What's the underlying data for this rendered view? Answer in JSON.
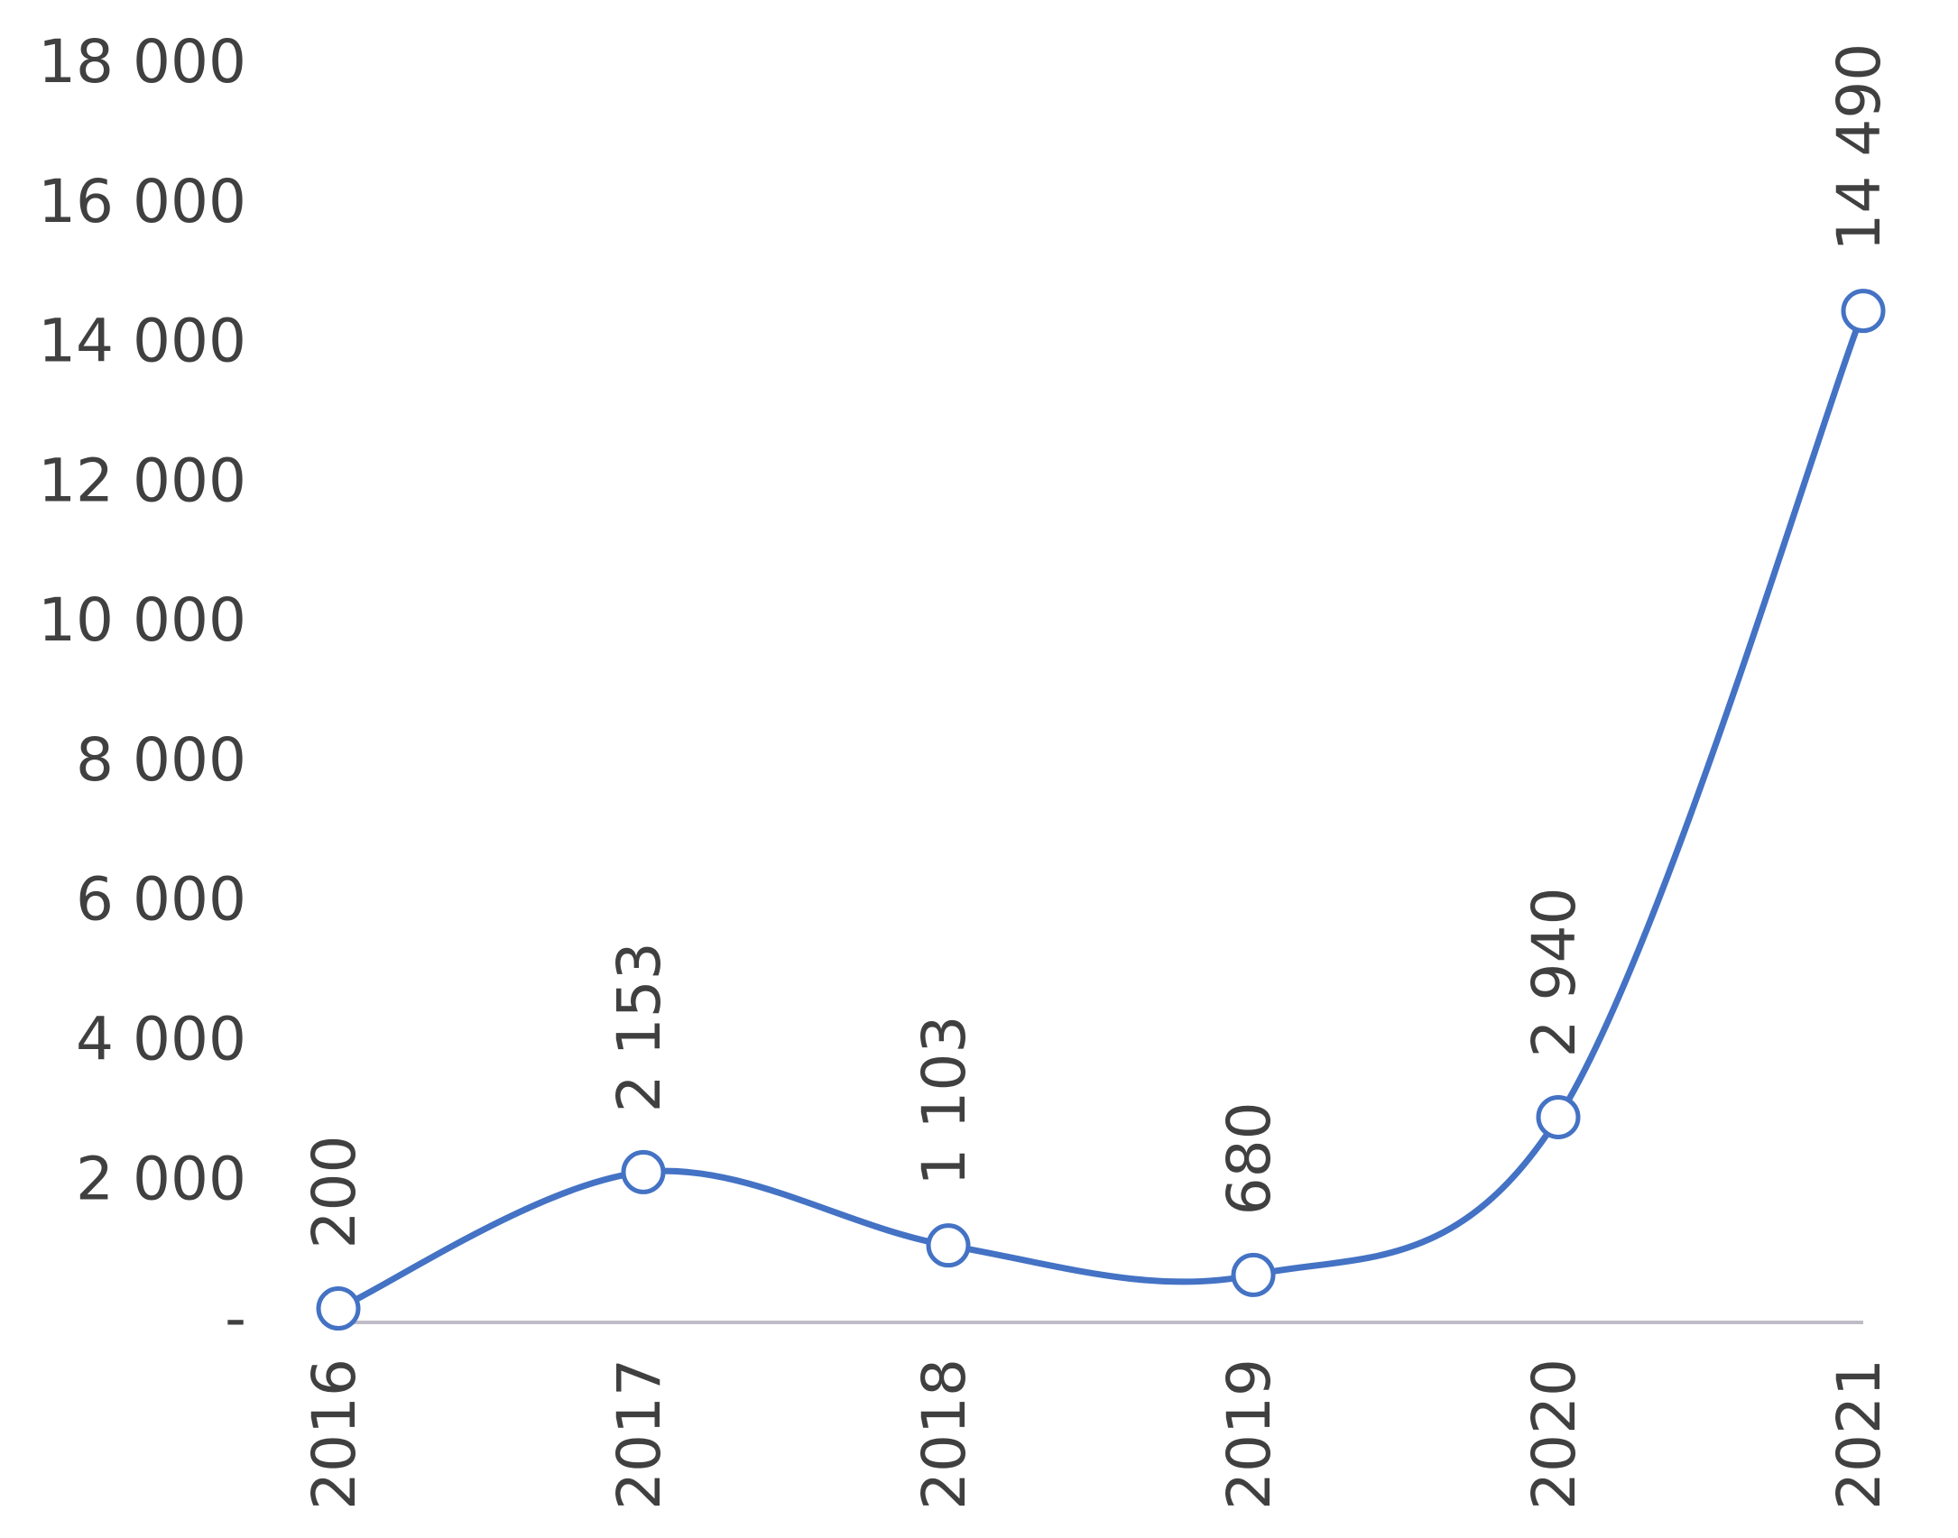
{
  "chart_data": {
    "type": "line",
    "categories": [
      "2016",
      "2017",
      "2018",
      "2019",
      "2020",
      "2021"
    ],
    "values": [
      200,
      2153,
      1103,
      680,
      2940,
      14490
    ],
    "value_labels": [
      "200",
      "2 153",
      "1 103",
      "680",
      "2 940",
      "14 490"
    ],
    "color": "#4472c4",
    "ylim": [
      0,
      18000
    ],
    "yticks": [
      {
        "value": 0,
        "label": "-"
      },
      {
        "value": 2000,
        "label": "2 000"
      },
      {
        "value": 4000,
        "label": "4 000"
      },
      {
        "value": 6000,
        "label": "6 000"
      },
      {
        "value": 8000,
        "label": "8 000"
      },
      {
        "value": 10000,
        "label": "10 000"
      },
      {
        "value": 12000,
        "label": "12 000"
      },
      {
        "value": 14000,
        "label": "14 000"
      },
      {
        "value": 16000,
        "label": "16 000"
      },
      {
        "value": 18000,
        "label": "18 000"
      }
    ],
    "smooth": true,
    "markers": true
  }
}
